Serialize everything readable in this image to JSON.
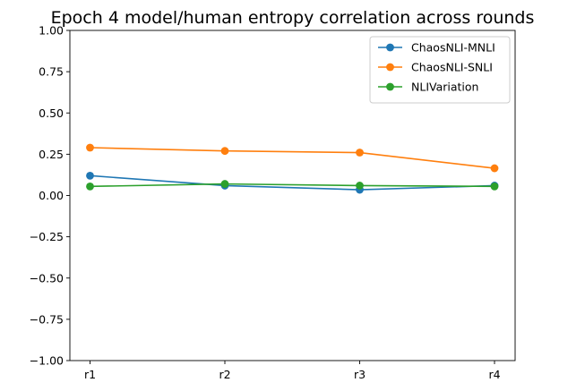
{
  "chart_data": {
    "type": "line",
    "title": "Epoch 4 model/human entropy correlation across rounds",
    "xlabel": "",
    "ylabel": "",
    "categories": [
      "r1",
      "r2",
      "r3",
      "r4"
    ],
    "ylim": [
      -1.0,
      1.0
    ],
    "yticks": [
      "−1.00",
      "−0.75",
      "−0.50",
      "−0.25",
      "0.00",
      "0.25",
      "0.50",
      "0.75",
      "1.00"
    ],
    "ytick_values": [
      -1.0,
      -0.75,
      -0.5,
      -0.25,
      0.0,
      0.25,
      0.5,
      0.75,
      1.0
    ],
    "grid": false,
    "legend_position": "top-right",
    "series": [
      {
        "name": "ChaosNLI-MNLI",
        "color": "#1f77b4",
        "values": [
          0.12,
          0.06,
          0.035,
          0.06
        ]
      },
      {
        "name": "ChaosNLI-SNLI",
        "color": "#ff7f0e",
        "values": [
          0.29,
          0.27,
          0.26,
          0.165
        ]
      },
      {
        "name": "NLIVariation",
        "color": "#2ca02c",
        "values": [
          0.055,
          0.07,
          0.06,
          0.055
        ]
      }
    ]
  }
}
